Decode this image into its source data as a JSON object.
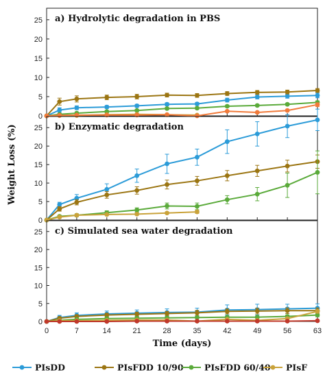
{
  "chart_data": {
    "type": "line",
    "ylabel": "Weight Loss (%)",
    "xlabel": "Time (days)",
    "x": [
      0,
      3,
      7,
      14,
      21,
      28,
      35,
      42,
      49,
      56,
      63
    ],
    "xticks": [
      0,
      7,
      14,
      21,
      28,
      35,
      42,
      49,
      56,
      63
    ],
    "yticks": [
      0,
      5,
      10,
      15,
      20,
      25
    ],
    "ylim": [
      0,
      28
    ],
    "xlim": [
      0,
      63
    ],
    "legend": {
      "placement": "bottom",
      "entries": [
        {
          "name": "PIsDD",
          "color": "#2b9bd8"
        },
        {
          "name": "PIsFDD 10/90",
          "color": "#9b7512"
        },
        {
          "name": "PIsFDD 60/40",
          "color": "#5aaa3a"
        },
        {
          "name": "PIsF",
          "color": "#c9a23a"
        }
      ]
    },
    "panels": [
      {
        "title": "a) Hydrolytic degradation in PBS",
        "series": [
          {
            "color": "#2b9bd8",
            "x": [
              0,
              3,
              7,
              14,
              21,
              28,
              35,
              42,
              49,
              56,
              63
            ],
            "values": [
              0,
              1.5,
              2.1,
              2.3,
              2.6,
              3.0,
              3.1,
              4.1,
              4.9,
              5.1,
              5.3
            ],
            "errors": [
              0,
              0.6,
              0.5,
              0.4,
              0.4,
              0.4,
              0.4,
              0.5,
              0.5,
              0.5,
              0.6
            ]
          },
          {
            "color": "#9b7512",
            "x": [
              0,
              3,
              7,
              14,
              21,
              28,
              35,
              42,
              49,
              56,
              63
            ],
            "values": [
              0,
              3.7,
              4.4,
              4.8,
              5.0,
              5.4,
              5.3,
              5.8,
              6.1,
              6.2,
              6.6
            ],
            "errors": [
              0,
              0.9,
              0.8,
              0.6,
              0.6,
              0.5,
              0.5,
              0.5,
              0.5,
              0.5,
              0.5
            ]
          },
          {
            "color": "#5aaa3a",
            "x": [
              0,
              3,
              7,
              14,
              21,
              28,
              35,
              42,
              49,
              56,
              63
            ],
            "values": [
              0,
              0.4,
              0.7,
              1.1,
              1.4,
              1.9,
              2.0,
              2.5,
              2.7,
              3.0,
              3.5
            ],
            "errors": [
              0,
              0.2,
              0.3,
              0.3,
              0.3,
              0.3,
              0.3,
              0.3,
              0.3,
              0.3,
              0.4
            ]
          },
          {
            "color": "#c9a23a",
            "x": [
              0,
              3,
              7,
              14,
              21,
              28,
              35
            ],
            "values": [
              0,
              0.1,
              0.1,
              0.3,
              0.4,
              0.3,
              0.2
            ],
            "errors": [
              0,
              0.1,
              0.1,
              0.1,
              0.1,
              0.1,
              0.1
            ]
          },
          {
            "color": "#f07a3a",
            "x": [
              0,
              3,
              7,
              14,
              21,
              28,
              35,
              42,
              49,
              56,
              63
            ],
            "values": [
              0,
              0.1,
              0.2,
              0.2,
              0.2,
              0.3,
              0.0,
              1.2,
              0.9,
              1.4,
              2.9
            ],
            "errors": [
              0,
              0.1,
              0.1,
              0.1,
              0.1,
              0.1,
              0.1,
              0.2,
              0.2,
              0.3,
              0.5
            ]
          }
        ]
      },
      {
        "title": "b) Enzymatic degradation",
        "series": [
          {
            "color": "#2b9bd8",
            "x": [
              0,
              3,
              7,
              14,
              21,
              28,
              35,
              42,
              49,
              56,
              63
            ],
            "values": [
              0,
              4.2,
              5.9,
              8.3,
              12.0,
              15.2,
              17.0,
              21.2,
              23.3,
              25.4,
              27.1
            ],
            "errors": [
              0,
              0.6,
              1.0,
              1.5,
              1.8,
              2.6,
              2.2,
              3.2,
              3.3,
              3.1,
              2.9
            ]
          },
          {
            "color": "#9b7512",
            "x": [
              0,
              3,
              7,
              14,
              21,
              28,
              35,
              42,
              49,
              56,
              63
            ],
            "values": [
              0,
              3.0,
              4.8,
              6.8,
              8.0,
              9.6,
              10.6,
              12.0,
              13.3,
              14.6,
              15.8
            ],
            "errors": [
              0,
              0.6,
              0.7,
              0.9,
              1.0,
              1.2,
              1.2,
              1.4,
              1.5,
              1.6,
              1.8
            ]
          },
          {
            "color": "#5aaa3a",
            "x": [
              0,
              3,
              7,
              14,
              21,
              28,
              35,
              42,
              49,
              56,
              63
            ],
            "values": [
              0,
              1.0,
              1.3,
              2.0,
              2.7,
              3.8,
              3.7,
              5.5,
              7.0,
              9.4,
              12.9
            ],
            "errors": [
              0,
              0.3,
              0.4,
              0.5,
              0.6,
              0.8,
              0.9,
              1.1,
              1.8,
              3.3,
              5.8
            ]
          },
          {
            "color": "#c9a23a",
            "x": [
              0,
              3,
              7,
              14,
              21,
              28,
              35
            ],
            "values": [
              0,
              0.8,
              1.3,
              1.5,
              1.6,
              1.9,
              2.2
            ],
            "errors": [
              0,
              0.3,
              0.3,
              0.3,
              0.3,
              0.3,
              0.4
            ]
          }
        ]
      },
      {
        "title": "c) Simulated sea water degradation",
        "series": [
          {
            "color": "#2b9bd8",
            "x": [
              0,
              3,
              7,
              14,
              21,
              28,
              35,
              42,
              49,
              56,
              63
            ],
            "values": [
              0,
              1.1,
              1.7,
              2.1,
              2.3,
              2.5,
              2.6,
              3.2,
              3.3,
              3.5,
              3.7
            ],
            "errors": [
              0,
              0.6,
              0.7,
              0.8,
              0.9,
              1.0,
              1.1,
              1.4,
              1.5,
              1.3,
              1.2
            ]
          },
          {
            "color": "#9b7512",
            "x": [
              0,
              3,
              7,
              14,
              21,
              28,
              35,
              42,
              49,
              56,
              63
            ],
            "values": [
              0,
              0.9,
              1.4,
              1.8,
              2.0,
              2.2,
              2.4,
              2.8,
              2.9,
              3.0,
              3.0
            ],
            "errors": [
              0,
              0.4,
              0.5,
              0.5,
              0.6,
              0.6,
              0.7,
              0.7,
              0.8,
              0.8,
              0.8
            ]
          },
          {
            "color": "#5aaa3a",
            "x": [
              0,
              3,
              7,
              14,
              21,
              28,
              35,
              42,
              49,
              56,
              63
            ],
            "values": [
              0,
              0.3,
              0.6,
              0.8,
              0.9,
              1.0,
              1.1,
              1.2,
              1.2,
              1.4,
              1.8
            ],
            "errors": [
              0,
              0.2,
              0.3,
              0.3,
              0.3,
              0.3,
              0.3,
              0.3,
              0.3,
              0.4,
              0.5
            ]
          },
          {
            "color": "#c9a23a",
            "x": [
              0,
              3,
              7,
              14,
              21,
              28,
              35,
              42,
              49,
              56,
              63
            ],
            "values": [
              0,
              0.2,
              0.2,
              0.3,
              0.4,
              0.4,
              0.1,
              0.6,
              0.3,
              0.8,
              2.8
            ],
            "errors": [
              0,
              0.1,
              0.1,
              0.1,
              0.1,
              0.1,
              0.1,
              0.2,
              0.2,
              0.3,
              0.5
            ]
          },
          {
            "color": "#c0392b",
            "x": [
              0,
              3,
              7,
              14,
              21,
              28,
              35,
              42,
              49,
              56,
              63
            ],
            "values": [
              0,
              0.0,
              0.0,
              0.0,
              0.1,
              0.1,
              0.1,
              0.1,
              0.1,
              0.1,
              0.2
            ],
            "errors": [
              0,
              0.05,
              0.05,
              0.05,
              0.05,
              0.05,
              0.05,
              0.05,
              0.05,
              0.05,
              0.05
            ]
          }
        ]
      }
    ]
  }
}
